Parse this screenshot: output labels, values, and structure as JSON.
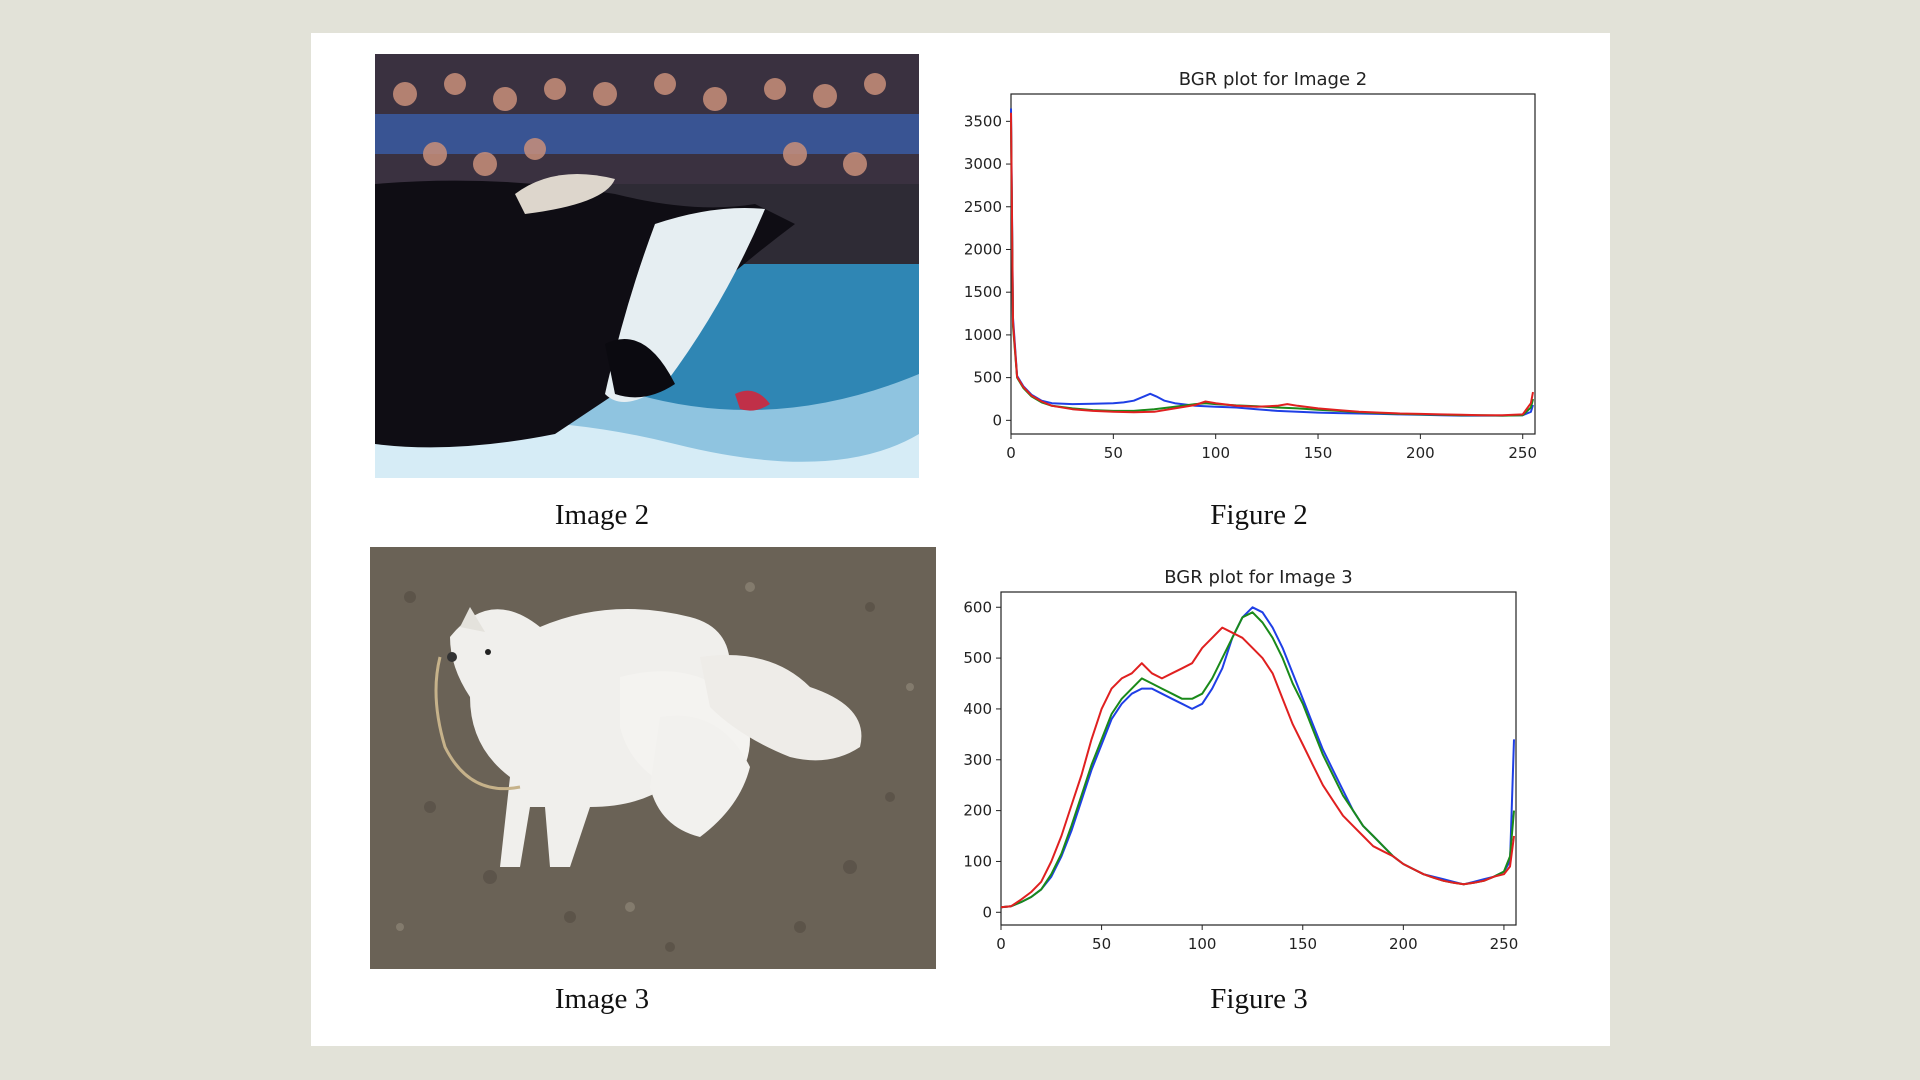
{
  "captions": {
    "image2": "Image 2",
    "figure2": "Figure 2",
    "image3": "Image 3",
    "figure3": "Figure 3"
  },
  "colors": {
    "blue": "#1f3fe6",
    "green": "#1a8a1a",
    "red": "#e02020"
  },
  "chart_data": [
    {
      "type": "line",
      "title": "BGR plot for Image 2",
      "xlim": [
        0,
        256
      ],
      "ylim": [
        -160,
        3820
      ],
      "xticks": [
        0,
        50,
        100,
        150,
        200,
        250
      ],
      "yticks": [
        0,
        500,
        1000,
        1500,
        2000,
        2500,
        3000,
        3500
      ],
      "grid": false,
      "series": [
        {
          "color": "blue",
          "points": [
            [
              0,
              3650
            ],
            [
              1,
              1200
            ],
            [
              3,
              520
            ],
            [
              6,
              400
            ],
            [
              10,
              300
            ],
            [
              15,
              230
            ],
            [
              20,
              200
            ],
            [
              30,
              190
            ],
            [
              40,
              195
            ],
            [
              50,
              200
            ],
            [
              55,
              210
            ],
            [
              60,
              230
            ],
            [
              65,
              280
            ],
            [
              68,
              310
            ],
            [
              71,
              280
            ],
            [
              75,
              230
            ],
            [
              80,
              200
            ],
            [
              90,
              170
            ],
            [
              100,
              160
            ],
            [
              110,
              150
            ],
            [
              120,
              130
            ],
            [
              130,
              110
            ],
            [
              140,
              100
            ],
            [
              150,
              90
            ],
            [
              160,
              85
            ],
            [
              170,
              80
            ],
            [
              180,
              75
            ],
            [
              190,
              70
            ],
            [
              200,
              65
            ],
            [
              210,
              60
            ],
            [
              220,
              55
            ],
            [
              230,
              55
            ],
            [
              240,
              55
            ],
            [
              250,
              60
            ],
            [
              254,
              100
            ],
            [
              255,
              180
            ]
          ]
        },
        {
          "color": "green",
          "points": [
            [
              0,
              3500
            ],
            [
              1,
              1100
            ],
            [
              3,
              500
            ],
            [
              6,
              380
            ],
            [
              10,
              280
            ],
            [
              15,
              210
            ],
            [
              20,
              170
            ],
            [
              30,
              140
            ],
            [
              40,
              120
            ],
            [
              50,
              110
            ],
            [
              60,
              110
            ],
            [
              70,
              130
            ],
            [
              80,
              160
            ],
            [
              90,
              190
            ],
            [
              95,
              200
            ],
            [
              100,
              190
            ],
            [
              110,
              175
            ],
            [
              120,
              165
            ],
            [
              130,
              150
            ],
            [
              140,
              140
            ],
            [
              150,
              125
            ],
            [
              160,
              110
            ],
            [
              170,
              95
            ],
            [
              180,
              85
            ],
            [
              190,
              75
            ],
            [
              200,
              70
            ],
            [
              210,
              65
            ],
            [
              220,
              60
            ],
            [
              230,
              60
            ],
            [
              240,
              55
            ],
            [
              250,
              60
            ],
            [
              254,
              150
            ],
            [
              255,
              250
            ]
          ]
        },
        {
          "color": "red",
          "points": [
            [
              0,
              3600
            ],
            [
              1,
              1150
            ],
            [
              3,
              510
            ],
            [
              6,
              390
            ],
            [
              10,
              290
            ],
            [
              15,
              220
            ],
            [
              20,
              170
            ],
            [
              30,
              130
            ],
            [
              40,
              110
            ],
            [
              50,
              100
            ],
            [
              60,
              95
            ],
            [
              70,
              100
            ],
            [
              80,
              140
            ],
            [
              90,
              180
            ],
            [
              95,
              220
            ],
            [
              100,
              200
            ],
            [
              110,
              170
            ],
            [
              120,
              160
            ],
            [
              130,
              170
            ],
            [
              135,
              190
            ],
            [
              140,
              170
            ],
            [
              150,
              140
            ],
            [
              160,
              120
            ],
            [
              170,
              100
            ],
            [
              180,
              90
            ],
            [
              190,
              80
            ],
            [
              200,
              75
            ],
            [
              210,
              70
            ],
            [
              220,
              65
            ],
            [
              230,
              60
            ],
            [
              240,
              60
            ],
            [
              250,
              70
            ],
            [
              254,
              200
            ],
            [
              255,
              330
            ]
          ]
        }
      ]
    },
    {
      "type": "line",
      "title": "BGR plot for Image 3",
      "xlim": [
        0,
        256
      ],
      "ylim": [
        -25,
        630
      ],
      "xticks": [
        0,
        50,
        100,
        150,
        200,
        250
      ],
      "yticks": [
        0,
        100,
        200,
        300,
        400,
        500,
        600
      ],
      "grid": false,
      "series": [
        {
          "color": "blue",
          "points": [
            [
              0,
              10
            ],
            [
              5,
              12
            ],
            [
              10,
              20
            ],
            [
              15,
              30
            ],
            [
              20,
              45
            ],
            [
              25,
              70
            ],
            [
              30,
              110
            ],
            [
              35,
              160
            ],
            [
              40,
              220
            ],
            [
              45,
              280
            ],
            [
              50,
              330
            ],
            [
              55,
              380
            ],
            [
              60,
              410
            ],
            [
              65,
              430
            ],
            [
              70,
              440
            ],
            [
              75,
              440
            ],
            [
              80,
              430
            ],
            [
              85,
              420
            ],
            [
              90,
              410
            ],
            [
              95,
              400
            ],
            [
              100,
              410
            ],
            [
              105,
              440
            ],
            [
              110,
              480
            ],
            [
              115,
              540
            ],
            [
              120,
              580
            ],
            [
              125,
              600
            ],
            [
              130,
              590
            ],
            [
              135,
              560
            ],
            [
              140,
              520
            ],
            [
              145,
              470
            ],
            [
              150,
              420
            ],
            [
              155,
              370
            ],
            [
              160,
              320
            ],
            [
              165,
              280
            ],
            [
              170,
              240
            ],
            [
              175,
              200
            ],
            [
              180,
              170
            ],
            [
              185,
              150
            ],
            [
              190,
              130
            ],
            [
              195,
              110
            ],
            [
              200,
              95
            ],
            [
              205,
              85
            ],
            [
              210,
              75
            ],
            [
              215,
              70
            ],
            [
              220,
              65
            ],
            [
              225,
              60
            ],
            [
              230,
              55
            ],
            [
              235,
              60
            ],
            [
              240,
              65
            ],
            [
              245,
              70
            ],
            [
              250,
              80
            ],
            [
              253,
              100
            ],
            [
              255,
              340
            ]
          ]
        },
        {
          "color": "green",
          "points": [
            [
              0,
              10
            ],
            [
              5,
              12
            ],
            [
              10,
              20
            ],
            [
              15,
              30
            ],
            [
              20,
              45
            ],
            [
              25,
              75
            ],
            [
              30,
              115
            ],
            [
              35,
              170
            ],
            [
              40,
              230
            ],
            [
              45,
              290
            ],
            [
              50,
              340
            ],
            [
              55,
              390
            ],
            [
              60,
              420
            ],
            [
              65,
              440
            ],
            [
              70,
              460
            ],
            [
              75,
              450
            ],
            [
              80,
              440
            ],
            [
              85,
              430
            ],
            [
              90,
              420
            ],
            [
              95,
              420
            ],
            [
              100,
              430
            ],
            [
              105,
              460
            ],
            [
              110,
              500
            ],
            [
              115,
              540
            ],
            [
              120,
              580
            ],
            [
              125,
              590
            ],
            [
              130,
              570
            ],
            [
              135,
              540
            ],
            [
              140,
              500
            ],
            [
              145,
              450
            ],
            [
              150,
              410
            ],
            [
              155,
              360
            ],
            [
              160,
              310
            ],
            [
              165,
              270
            ],
            [
              170,
              230
            ],
            [
              175,
              200
            ],
            [
              180,
              170
            ],
            [
              185,
              150
            ],
            [
              190,
              130
            ],
            [
              195,
              110
            ],
            [
              200,
              95
            ],
            [
              205,
              85
            ],
            [
              210,
              75
            ],
            [
              215,
              68
            ],
            [
              220,
              62
            ],
            [
              225,
              58
            ],
            [
              230,
              55
            ],
            [
              235,
              58
            ],
            [
              240,
              62
            ],
            [
              245,
              70
            ],
            [
              250,
              80
            ],
            [
              253,
              110
            ],
            [
              255,
              200
            ]
          ]
        },
        {
          "color": "red",
          "points": [
            [
              0,
              10
            ],
            [
              5,
              12
            ],
            [
              10,
              25
            ],
            [
              15,
              40
            ],
            [
              20,
              60
            ],
            [
              25,
              100
            ],
            [
              30,
              150
            ],
            [
              35,
              210
            ],
            [
              40,
              270
            ],
            [
              45,
              340
            ],
            [
              50,
              400
            ],
            [
              55,
              440
            ],
            [
              60,
              460
            ],
            [
              65,
              470
            ],
            [
              70,
              490
            ],
            [
              75,
              470
            ],
            [
              80,
              460
            ],
            [
              85,
              470
            ],
            [
              90,
              480
            ],
            [
              95,
              490
            ],
            [
              100,
              520
            ],
            [
              105,
              540
            ],
            [
              110,
              560
            ],
            [
              115,
              550
            ],
            [
              120,
              540
            ],
            [
              125,
              520
            ],
            [
              130,
              500
            ],
            [
              135,
              470
            ],
            [
              140,
              420
            ],
            [
              145,
              370
            ],
            [
              150,
              330
            ],
            [
              155,
              290
            ],
            [
              160,
              250
            ],
            [
              165,
              220
            ],
            [
              170,
              190
            ],
            [
              175,
              170
            ],
            [
              180,
              150
            ],
            [
              185,
              130
            ],
            [
              190,
              120
            ],
            [
              195,
              110
            ],
            [
              200,
              95
            ],
            [
              205,
              85
            ],
            [
              210,
              75
            ],
            [
              215,
              68
            ],
            [
              220,
              62
            ],
            [
              225,
              58
            ],
            [
              230,
              55
            ],
            [
              235,
              58
            ],
            [
              240,
              62
            ],
            [
              245,
              70
            ],
            [
              250,
              75
            ],
            [
              253,
              90
            ],
            [
              255,
              150
            ]
          ]
        }
      ]
    }
  ]
}
